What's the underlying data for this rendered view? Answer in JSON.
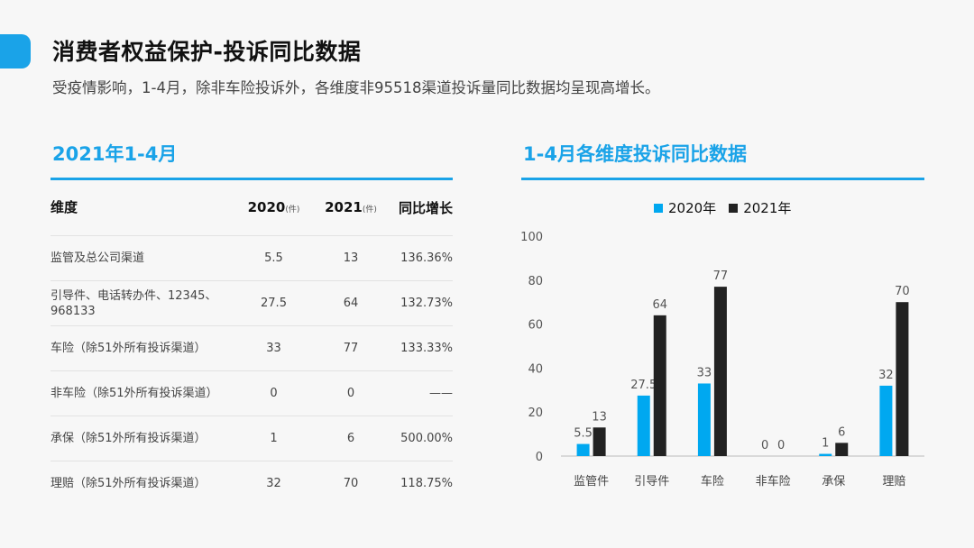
{
  "header": {
    "title": "消费者权益保护-投诉同比数据",
    "subtitle": "受疫情影响，1-4月，除非车险投诉外，各维度非95518渠道投诉量同比数据均呈现高增长。"
  },
  "colors": {
    "accent": "#1aa3e8",
    "series2020": "#00a8f0",
    "series2021": "#222222"
  },
  "table": {
    "title": "2021年1-4月",
    "headers": {
      "dimension": "维度",
      "y2020": "2020",
      "y2021": "2021",
      "unit": "(件)",
      "growth": "同比增长"
    },
    "rows": [
      {
        "name": "监管及总公司渠道",
        "v2020": "5.5",
        "v2021": "13",
        "growth": "136.36%"
      },
      {
        "name": "引导件、电话转办件、12345、968133",
        "v2020": "27.5",
        "v2021": "64",
        "growth": "132.73%"
      },
      {
        "name": "车险（除51外所有投诉渠道）",
        "v2020": "33",
        "v2021": "77",
        "growth": "133.33%"
      },
      {
        "name": "非车险（除51外所有投诉渠道）",
        "v2020": "0",
        "v2021": "0",
        "growth": "——"
      },
      {
        "name": "承保（除51外所有投诉渠道）",
        "v2020": "1",
        "v2021": "6",
        "growth": "500.00%"
      },
      {
        "name": "理赔（除51外所有投诉渠道）",
        "v2020": "32",
        "v2021": "70",
        "growth": "118.75%"
      }
    ]
  },
  "chart_data": {
    "type": "bar",
    "title": "1-4月各维度投诉同比数据",
    "categories": [
      "监管件",
      "引导件",
      "车险",
      "非车险",
      "承保",
      "理赔"
    ],
    "series": [
      {
        "name": "2020年",
        "values": [
          5.5,
          27.5,
          33,
          0,
          1,
          32
        ]
      },
      {
        "name": "2021年",
        "values": [
          13,
          64,
          77,
          0,
          6,
          70
        ]
      }
    ],
    "ylim": [
      0,
      100
    ],
    "yticks": [
      0,
      20,
      40,
      60,
      80,
      100
    ],
    "legend": "top-center",
    "grid": false
  }
}
